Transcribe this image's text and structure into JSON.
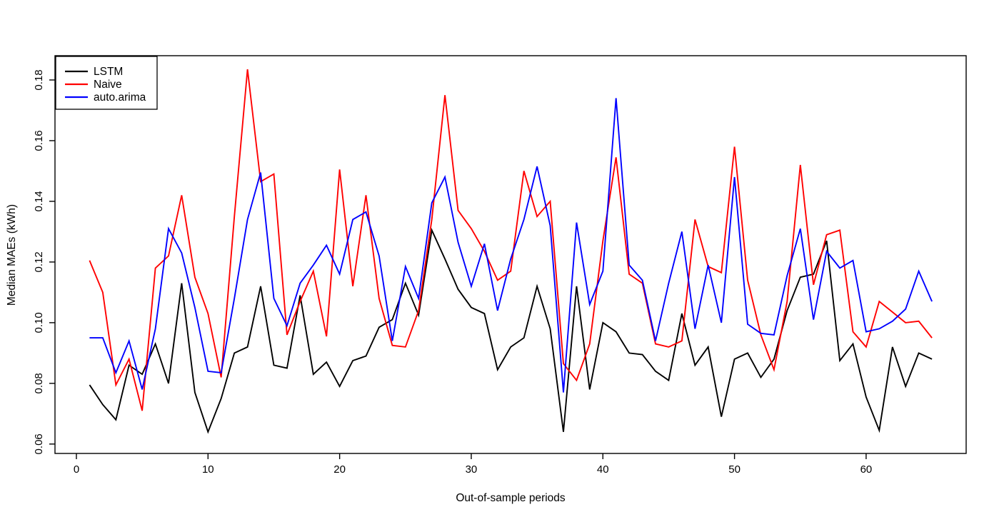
{
  "chart_data": {
    "type": "line",
    "title": "",
    "xlabel": "Out-of-sample periods",
    "ylabel": "Median MAEs (kWh)",
    "grid": false,
    "xlim": [
      -1.627,
      67.6
    ],
    "ylim": [
      0.0569,
      0.188
    ],
    "x_ticks": {
      "values": [
        0,
        10,
        20,
        30,
        40,
        50,
        60
      ],
      "labels": [
        "0",
        "10",
        "20",
        "30",
        "40",
        "50",
        "60"
      ]
    },
    "y_ticks": {
      "values": [
        0.06,
        0.08,
        0.1,
        0.12,
        0.14,
        0.16,
        0.18
      ],
      "labels": [
        "0.06",
        "0.08",
        "0.10",
        "0.12",
        "0.14",
        "0.16",
        "0.18"
      ]
    },
    "legend": {
      "position": "top-left",
      "items": [
        {
          "label": "LSTM",
          "color": "#000000"
        },
        {
          "label": "Naive",
          "color": "#ff0000"
        },
        {
          "label": "auto.arima",
          "color": "#0000ff"
        }
      ]
    },
    "x": [
      1,
      2,
      3,
      4,
      5,
      6,
      7,
      8,
      9,
      10,
      11,
      12,
      13,
      14,
      15,
      16,
      17,
      18,
      19,
      20,
      21,
      22,
      23,
      24,
      25,
      26,
      27,
      28,
      29,
      30,
      31,
      32,
      33,
      34,
      35,
      36,
      37,
      38,
      39,
      40,
      41,
      42,
      43,
      44,
      45,
      46,
      47,
      48,
      49,
      50,
      51,
      52,
      53,
      54,
      55,
      56,
      57,
      58,
      59,
      60,
      61,
      62,
      63,
      64,
      65
    ],
    "series": [
      {
        "name": "LSTM",
        "color": "#000000",
        "values": [
          0.0795,
          0.073,
          0.068,
          0.086,
          0.083,
          0.093,
          0.08,
          0.113,
          0.077,
          0.064,
          0.075,
          0.09,
          0.092,
          0.112,
          0.086,
          0.085,
          0.109,
          0.083,
          0.087,
          0.079,
          0.0875,
          0.089,
          0.0985,
          0.101,
          0.113,
          0.1025,
          0.1305,
          0.121,
          0.111,
          0.105,
          0.103,
          0.0845,
          0.092,
          0.095,
          0.112,
          0.098,
          0.064,
          0.112,
          0.078,
          0.1,
          0.097,
          0.09,
          0.0895,
          0.084,
          0.081,
          0.103,
          0.086,
          0.092,
          0.069,
          0.088,
          0.09,
          0.082,
          0.088,
          0.104,
          0.115,
          0.116,
          0.127,
          0.0875,
          0.093,
          0.0755,
          0.0645,
          0.092,
          0.079,
          0.09,
          0.088
        ]
      },
      {
        "name": "Naive",
        "color": "#ff0000",
        "values": [
          0.1205,
          0.11,
          0.0795,
          0.088,
          0.071,
          0.118,
          0.122,
          0.142,
          0.115,
          0.103,
          0.082,
          0.135,
          0.1835,
          0.1465,
          0.149,
          0.096,
          0.107,
          0.117,
          0.0955,
          0.1505,
          0.112,
          0.142,
          0.108,
          0.0925,
          0.092,
          0.104,
          0.134,
          0.175,
          0.137,
          0.131,
          0.1235,
          0.114,
          0.117,
          0.15,
          0.135,
          0.14,
          0.0865,
          0.081,
          0.093,
          0.127,
          0.1545,
          0.116,
          0.113,
          0.093,
          0.092,
          0.094,
          0.134,
          0.1185,
          0.1165,
          0.158,
          0.114,
          0.096,
          0.0845,
          0.107,
          0.152,
          0.1125,
          0.129,
          0.1305,
          0.097,
          0.092,
          0.107,
          0.1035,
          0.1,
          0.1005,
          0.095
        ]
      },
      {
        "name": "auto.arima",
        "color": "#0000ff",
        "values": [
          0.095,
          0.095,
          0.0835,
          0.094,
          0.078,
          0.098,
          0.131,
          0.123,
          0.105,
          0.084,
          0.0835,
          0.108,
          0.134,
          0.1495,
          0.108,
          0.099,
          0.113,
          0.119,
          0.1255,
          0.116,
          0.134,
          0.1365,
          0.122,
          0.094,
          0.1185,
          0.108,
          0.1395,
          0.148,
          0.1265,
          0.112,
          0.126,
          0.104,
          0.121,
          0.134,
          0.1515,
          0.132,
          0.077,
          0.133,
          0.106,
          0.117,
          0.174,
          0.119,
          0.114,
          0.094,
          0.113,
          0.13,
          0.098,
          0.119,
          0.1,
          0.148,
          0.0995,
          0.0965,
          0.096,
          0.1155,
          0.131,
          0.101,
          0.1235,
          0.118,
          0.1205,
          0.097,
          0.098,
          0.1005,
          0.1045,
          0.117,
          0.107
        ]
      }
    ]
  }
}
